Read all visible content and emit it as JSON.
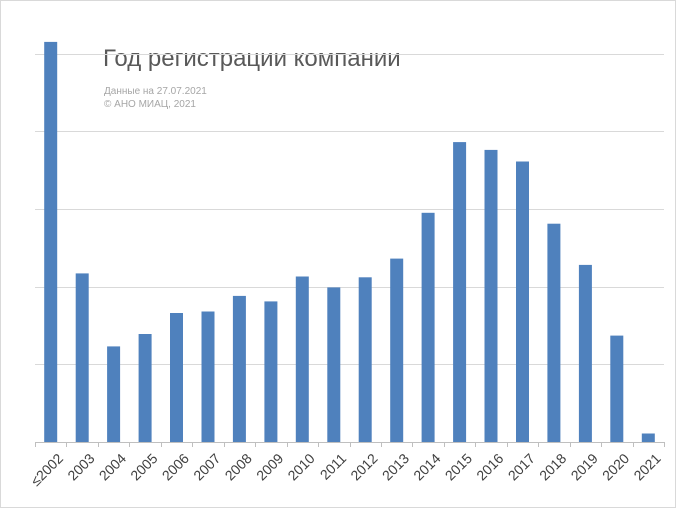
{
  "chart_data": {
    "type": "bar",
    "title": "Год регистрации компании",
    "subtitle_lines": [
      "Данные на 27.07.2021",
      "© АНО МИАЦ, 2021"
    ],
    "categories": [
      "≤2002",
      "2003",
      "2004",
      "2005",
      "2006",
      "2007",
      "2008",
      "2009",
      "2010",
      "2011",
      "2012",
      "2013",
      "2014",
      "2015",
      "2016",
      "2017",
      "2018",
      "2019",
      "2020",
      "2021"
    ],
    "values": [
      5.15,
      2.17,
      1.23,
      1.39,
      1.66,
      1.68,
      1.88,
      1.81,
      2.13,
      1.99,
      2.12,
      2.36,
      2.95,
      3.86,
      3.76,
      3.61,
      2.81,
      2.28,
      1.37,
      0.11
    ],
    "ylim": [
      0,
      5.2
    ],
    "y_tick_values": [
      0,
      1,
      2,
      3,
      4,
      5
    ],
    "y_tick_labels_shown": false,
    "grid": true,
    "legend": "none",
    "xlabel": "",
    "ylabel": "",
    "colors": {
      "bar": "#4f81bd",
      "grid": "#d9d9d9",
      "axis": "#bfbfbf",
      "title": "#595959",
      "subtitle": "#a6a6a6",
      "tick_label": "#404040"
    }
  }
}
